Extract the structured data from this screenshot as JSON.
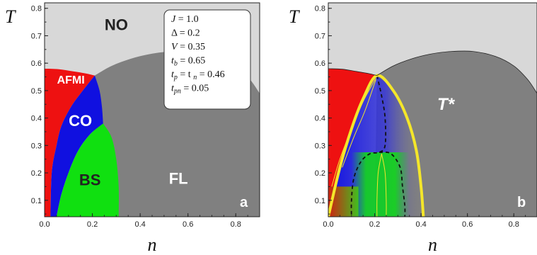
{
  "chart_data": [
    {
      "type": "phase-diagram",
      "panel_label": "a",
      "xlabel": "n",
      "ylabel": "T",
      "xlim": [
        0.0,
        0.9
      ],
      "ylim": [
        0.04,
        0.82
      ],
      "x_ticks": [
        "0.0",
        "0.2",
        "0.4",
        "0.6",
        "0.8"
      ],
      "y_ticks": [
        "0.1",
        "0.2",
        "0.3",
        "0.4",
        "0.5",
        "0.6",
        "0.7",
        "0.8"
      ],
      "regions": [
        {
          "label": "NO",
          "color": "#d8d8d8",
          "label_pos": [
            0.3,
            0.72
          ]
        },
        {
          "label": "AFMI",
          "color": "#ee1111",
          "label_pos": [
            0.11,
            0.525
          ]
        },
        {
          "label": "CO",
          "color": "#1010e0",
          "label_pos": [
            0.15,
            0.37
          ]
        },
        {
          "label": "BS",
          "color": "#10e010",
          "label_pos": [
            0.19,
            0.155
          ]
        },
        {
          "label": "FL",
          "color": "#808080",
          "label_pos": [
            0.56,
            0.16
          ]
        }
      ],
      "boundaries": {
        "afmi_top": [
          [
            0.0,
            0.58
          ],
          [
            0.06,
            0.578
          ],
          [
            0.12,
            0.57
          ],
          [
            0.175,
            0.562
          ],
          [
            0.21,
            0.555
          ]
        ],
        "no_fl": [
          [
            0.21,
            0.555
          ],
          [
            0.28,
            0.59
          ],
          [
            0.36,
            0.616
          ],
          [
            0.44,
            0.633
          ],
          [
            0.52,
            0.642
          ],
          [
            0.62,
            0.643
          ],
          [
            0.72,
            0.625
          ],
          [
            0.8,
            0.59
          ],
          [
            0.86,
            0.54
          ],
          [
            0.9,
            0.49
          ]
        ],
        "afmi_co": [
          [
            0.21,
            0.555
          ],
          [
            0.16,
            0.5
          ],
          [
            0.11,
            0.44
          ],
          [
            0.07,
            0.37
          ],
          [
            0.05,
            0.3
          ],
          [
            0.03,
            0.2
          ],
          [
            0.025,
            0.04
          ]
        ],
        "co_fl": [
          [
            0.21,
            0.555
          ],
          [
            0.23,
            0.5
          ],
          [
            0.24,
            0.44
          ],
          [
            0.245,
            0.38
          ]
        ],
        "bs_left": [
          [
            0.05,
            0.04
          ],
          [
            0.07,
            0.12
          ],
          [
            0.1,
            0.2
          ],
          [
            0.14,
            0.28
          ],
          [
            0.19,
            0.34
          ],
          [
            0.245,
            0.38
          ]
        ],
        "bs_right": [
          [
            0.245,
            0.38
          ],
          [
            0.28,
            0.33
          ],
          [
            0.3,
            0.25
          ],
          [
            0.31,
            0.15
          ],
          [
            0.31,
            0.04
          ]
        ]
      },
      "parameters": {
        "J": "J = 1.0",
        "Delta": "Δ = 0.2",
        "V": "V = 0.35",
        "tb": "= 0.65",
        "tp_tn": "= t",
        "tp_tn_val": "= 0.46",
        "tpn": "= 0.05"
      }
    },
    {
      "type": "phase-diagram",
      "panel_label": "b",
      "xlabel": "n",
      "ylabel": "T",
      "xlim": [
        0.0,
        0.9
      ],
      "ylim": [
        0.04,
        0.82
      ],
      "x_ticks": [
        "0.0",
        "0.2",
        "0.4",
        "0.6",
        "0.8"
      ],
      "y_ticks": [
        "0.1",
        "0.2",
        "0.3",
        "0.4",
        "0.5",
        "0.6",
        "0.7",
        "0.8"
      ],
      "curve_label": "T*",
      "t_star_curve": [
        [
          0.0,
          0.04
        ],
        [
          0.05,
          0.22
        ],
        [
          0.1,
          0.36
        ],
        [
          0.15,
          0.47
        ],
        [
          0.21,
          0.555
        ],
        [
          0.28,
          0.5
        ],
        [
          0.34,
          0.4
        ],
        [
          0.38,
          0.28
        ],
        [
          0.4,
          0.15
        ],
        [
          0.41,
          0.04
        ]
      ],
      "dashed_curves": [
        [
          [
            0.21,
            0.555
          ],
          [
            0.23,
            0.48
          ],
          [
            0.245,
            0.4
          ],
          [
            0.245,
            0.3
          ],
          [
            0.22,
            0.275
          ],
          [
            0.18,
            0.27
          ],
          [
            0.14,
            0.24
          ],
          [
            0.11,
            0.18
          ],
          [
            0.1,
            0.1
          ],
          [
            0.1,
            0.04
          ]
        ],
        [
          [
            0.22,
            0.275
          ],
          [
            0.27,
            0.27
          ],
          [
            0.31,
            0.22
          ],
          [
            0.32,
            0.15
          ],
          [
            0.33,
            0.08
          ],
          [
            0.33,
            0.04
          ]
        ]
      ],
      "inner_curves": [
        [
          [
            0.015,
            0.15
          ],
          [
            0.05,
            0.25
          ],
          [
            0.1,
            0.36
          ],
          [
            0.15,
            0.46
          ],
          [
            0.205,
            0.545
          ]
        ],
        [
          [
            0.06,
            0.22
          ],
          [
            0.11,
            0.33
          ],
          [
            0.16,
            0.43
          ],
          [
            0.205,
            0.54
          ]
        ],
        [
          [
            0.23,
            0.27
          ],
          [
            0.215,
            0.2
          ],
          [
            0.21,
            0.1
          ],
          [
            0.21,
            0.04
          ]
        ],
        [
          [
            0.23,
            0.27
          ],
          [
            0.245,
            0.2
          ],
          [
            0.25,
            0.1
          ],
          [
            0.25,
            0.04
          ]
        ]
      ],
      "shaded": {
        "red": "#ee1111",
        "blue": "#1010e0",
        "green": "#10e010",
        "no": "#d8d8d8",
        "fl": "#808080",
        "t_star": "#f4e62a"
      }
    }
  ]
}
